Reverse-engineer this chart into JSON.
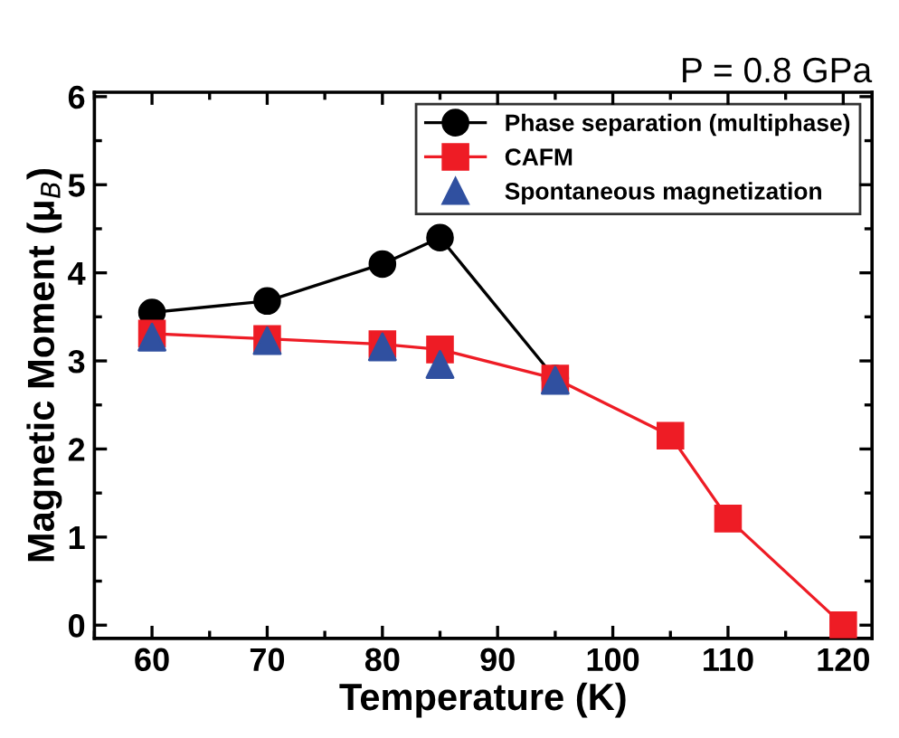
{
  "chart_data": {
    "type": "line",
    "xlabel": "Temperature (K)",
    "ylabel": "Magnetic Moment (μ$_{B}$)",
    "annotations": [
      "P = 0.8 GPa"
    ],
    "xlim": [
      55,
      122.5
    ],
    "xticks": [
      60,
      70,
      80,
      90,
      100,
      110,
      120
    ],
    "ylim": [
      -0.15,
      6.05
    ],
    "yticks": [
      0,
      1,
      2,
      3,
      4,
      5,
      6
    ],
    "grid": false,
    "legend": "top right",
    "line_style": "solid",
    "series": [
      {
        "name": "Phase separation (multiphase)",
        "marker": "circle",
        "color": "#000000",
        "x": [
          60,
          70,
          80,
          85,
          95
        ],
        "values": [
          3.55,
          3.68,
          4.1,
          4.4,
          2.8
        ]
      },
      {
        "name": "CAFM",
        "marker": "square",
        "color": "#ee1c25",
        "x": [
          60,
          70,
          80,
          85,
          95,
          105,
          110,
          120
        ],
        "values": [
          3.31,
          3.25,
          3.19,
          3.13,
          2.8,
          2.15,
          1.21,
          0.0
        ]
      },
      {
        "name": "Spontaneous magnetization",
        "type": "scatter",
        "marker": "triangle",
        "color": "#3050a0",
        "x": [
          60,
          70,
          80,
          85,
          95
        ],
        "values": [
          3.27,
          3.23,
          3.16,
          2.96,
          2.78
        ]
      }
    ]
  }
}
